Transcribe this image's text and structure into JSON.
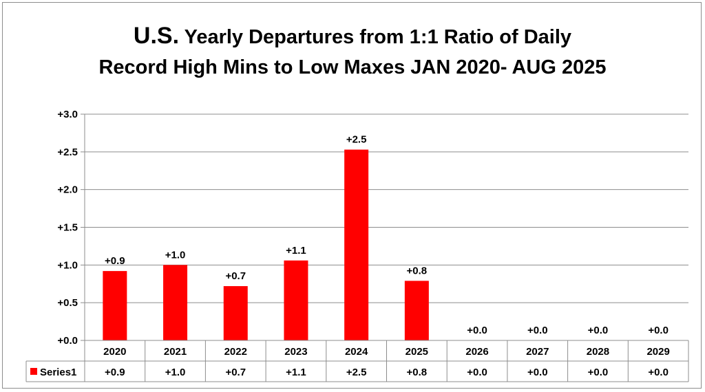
{
  "title": {
    "prefix": "U.S.",
    "line1": " Yearly Departures from 1:1 Ratio of Daily",
    "line2": "Record High Mins to Low Maxes JAN 2020- AUG 2025"
  },
  "chart_data": {
    "type": "bar",
    "categories": [
      "2020",
      "2021",
      "2022",
      "2023",
      "2024",
      "2025",
      "2026",
      "2027",
      "2028",
      "2029"
    ],
    "series": [
      {
        "name": "Series1",
        "values": [
          0.92,
          1.0,
          0.72,
          1.06,
          2.53,
          0.79,
          0.0,
          0.0,
          0.0,
          0.0
        ],
        "labels": [
          "+0.9",
          "+1.0",
          "+0.7",
          "+1.1",
          "+2.5",
          "+0.8",
          "+0.0",
          "+0.0",
          "+0.0",
          "+0.0"
        ],
        "color": "#ff0000"
      }
    ],
    "ylim": [
      0,
      3.0
    ],
    "yticks": [
      0,
      0.5,
      1.0,
      1.5,
      2.0,
      2.5,
      3.0
    ],
    "ytick_labels": [
      "+0.0",
      "+0.5",
      "+1.0",
      "+1.5",
      "+2.0",
      "+2.5",
      "+3.0"
    ],
    "grid": true,
    "legend": "data-table",
    "xlabel": "",
    "ylabel": ""
  }
}
